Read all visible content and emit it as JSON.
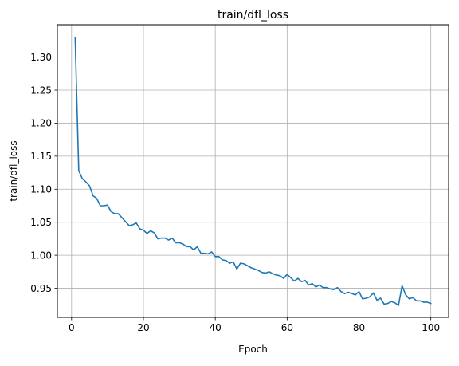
{
  "chart_data": {
    "type": "line",
    "title": "train/dfl_loss",
    "xlabel": "Epoch",
    "ylabel": "train/dfl_loss",
    "xlim": [
      -3.95,
      104.95
    ],
    "ylim": [
      0.906,
      1.349
    ],
    "xticks": [
      0,
      20,
      40,
      60,
      80,
      100
    ],
    "xtick_labels": [
      "0",
      "20",
      "40",
      "60",
      "80",
      "100"
    ],
    "yticks": [
      0.95,
      1.0,
      1.05,
      1.1,
      1.15,
      1.2,
      1.25,
      1.3
    ],
    "ytick_labels": [
      "0.95",
      "1.00",
      "1.05",
      "1.10",
      "1.15",
      "1.20",
      "1.25",
      "1.30"
    ],
    "grid": true,
    "series": [
      {
        "color": "#1f77b4",
        "x": [
          1,
          2,
          3,
          4,
          5,
          6,
          7,
          8,
          9,
          10,
          11,
          12,
          13,
          14,
          15,
          16,
          17,
          18,
          19,
          20,
          21,
          22,
          23,
          24,
          25,
          26,
          27,
          28,
          29,
          30,
          31,
          32,
          33,
          34,
          35,
          36,
          37,
          38,
          39,
          40,
          41,
          42,
          43,
          44,
          45,
          46,
          47,
          48,
          49,
          50,
          51,
          52,
          53,
          54,
          55,
          56,
          57,
          58,
          59,
          60,
          61,
          62,
          63,
          64,
          65,
          66,
          67,
          68,
          69,
          70,
          71,
          72,
          73,
          74,
          75,
          76,
          77,
          78,
          79,
          80,
          81,
          82,
          83,
          84,
          85,
          86,
          87,
          88,
          89,
          90,
          91,
          92,
          93,
          94,
          95,
          96,
          97,
          98,
          99,
          100
        ],
        "values": [
          1.329,
          1.128,
          1.116,
          1.111,
          1.105,
          1.09,
          1.086,
          1.075,
          1.075,
          1.076,
          1.066,
          1.063,
          1.063,
          1.057,
          1.051,
          1.045,
          1.046,
          1.049,
          1.04,
          1.038,
          1.033,
          1.037,
          1.034,
          1.025,
          1.026,
          1.026,
          1.023,
          1.026,
          1.019,
          1.019,
          1.017,
          1.013,
          1.013,
          1.008,
          1.013,
          1.003,
          1.003,
          1.002,
          1.005,
          0.998,
          0.998,
          0.993,
          0.992,
          0.988,
          0.99,
          0.979,
          0.988,
          0.987,
          0.984,
          0.981,
          0.979,
          0.977,
          0.974,
          0.973,
          0.975,
          0.972,
          0.97,
          0.969,
          0.965,
          0.971,
          0.966,
          0.961,
          0.965,
          0.96,
          0.962,
          0.955,
          0.957,
          0.952,
          0.955,
          0.951,
          0.951,
          0.949,
          0.948,
          0.951,
          0.945,
          0.942,
          0.944,
          0.942,
          0.94,
          0.945,
          0.934,
          0.935,
          0.937,
          0.943,
          0.932,
          0.935,
          0.926,
          0.927,
          0.93,
          0.928,
          0.924,
          0.954,
          0.94,
          0.934,
          0.936,
          0.931,
          0.931,
          0.929,
          0.929,
          0.927
        ]
      }
    ]
  }
}
